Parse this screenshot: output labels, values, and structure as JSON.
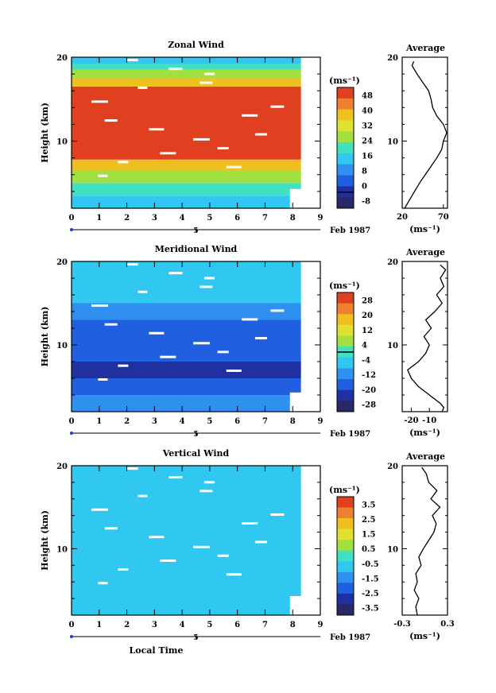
{
  "page": {
    "xlabel_bottom": "Local Time",
    "date_label": "Feb 1987",
    "day_marker": "5"
  },
  "chart_data": [
    {
      "type": "heatmap",
      "title": "Zonal Wind",
      "ylabel": "Height (km)",
      "xlim": [
        0,
        9
      ],
      "ylim": [
        2,
        20
      ],
      "xticks": [
        "0",
        "1",
        "2",
        "3",
        "4",
        "5",
        "6",
        "7",
        "8",
        "9"
      ],
      "yticks": [
        "10",
        "20"
      ],
      "ytick_values": [
        10,
        20
      ],
      "data_extent_x": [
        0,
        8.3
      ],
      "colorbar": {
        "unit": "(ms⁻¹)",
        "labels": [
          "48",
          "40",
          "32",
          "24",
          "16",
          "8",
          "0",
          "-8"
        ],
        "range": [
          -8,
          52
        ],
        "zero_line": 0,
        "colors": [
          "#e04020",
          "#f08030",
          "#f0c020",
          "#e0e030",
          "#a0e040",
          "#40e0c0",
          "#30c8f0",
          "#3090f0",
          "#2060e0",
          "#2030a0",
          "#282868"
        ]
      },
      "bands": [
        {
          "z0": 2,
          "z1": 3.5,
          "value": 14
        },
        {
          "z0": 3.5,
          "z1": 5,
          "value": 22
        },
        {
          "z0": 5,
          "z1": 6.5,
          "value": 30
        },
        {
          "z0": 6.5,
          "z1": 7.8,
          "value": 40
        },
        {
          "z0": 7.8,
          "z1": 16.5,
          "value": 52
        },
        {
          "z0": 16.5,
          "z1": 17.5,
          "value": 40
        },
        {
          "z0": 17.5,
          "z1": 18.5,
          "value": 30
        },
        {
          "z0": 18.5,
          "z1": 19.2,
          "value": 24
        },
        {
          "z0": 19.2,
          "z1": 20,
          "value": 18
        }
      ],
      "profile": {
        "title": "Average",
        "xlabel": "(ms⁻¹)",
        "xlim": [
          20,
          75
        ],
        "xticks": [
          "20",
          "70"
        ],
        "xtick_values": [
          20,
          70
        ],
        "ylim": [
          2,
          20
        ],
        "yticks": [
          "10",
          "20"
        ],
        "z": [
          2,
          3,
          4,
          5,
          6,
          7,
          8,
          9,
          10,
          11,
          12,
          13,
          14,
          15,
          16,
          17,
          18,
          19,
          19.5
        ],
        "values": [
          23,
          29,
          35,
          41,
          48,
          55,
          62,
          68,
          70,
          74,
          70,
          62,
          57,
          55,
          52,
          45,
          38,
          32,
          34
        ]
      }
    },
    {
      "type": "heatmap",
      "title": "Meridional Wind",
      "ylabel": "Height (km)",
      "xlim": [
        0,
        9
      ],
      "ylim": [
        2,
        20
      ],
      "xticks": [
        "0",
        "1",
        "2",
        "3",
        "4",
        "5",
        "6",
        "7",
        "8",
        "9"
      ],
      "yticks": [
        "10",
        "20"
      ],
      "ytick_values": [
        10,
        20
      ],
      "data_extent_x": [
        0,
        8.3
      ],
      "colorbar": {
        "unit": "(ms⁻¹)",
        "labels": [
          "28",
          "20",
          "12",
          "4",
          "-4",
          "-12",
          "-20",
          "-28"
        ],
        "range": [
          -32,
          32
        ],
        "zero_line": 0,
        "colors": [
          "#e04020",
          "#f08030",
          "#f0c020",
          "#e0e030",
          "#a0e040",
          "#40e0c0",
          "#30c8f0",
          "#3090f0",
          "#2060e0",
          "#2030a0",
          "#282868"
        ]
      },
      "bands": [
        {
          "z0": 2,
          "z1": 4,
          "value": -14
        },
        {
          "z0": 4,
          "z1": 6,
          "value": -20
        },
        {
          "z0": 6,
          "z1": 8,
          "value": -26
        },
        {
          "z0": 8,
          "z1": 10,
          "value": -20
        },
        {
          "z0": 10,
          "z1": 13,
          "value": -16
        },
        {
          "z0": 13,
          "z1": 15,
          "value": -11
        },
        {
          "z0": 15,
          "z1": 17,
          "value": -8
        },
        {
          "z0": 17,
          "z1": 20,
          "value": -5
        }
      ],
      "profile": {
        "title": "Average",
        "xlabel": "(ms⁻¹)",
        "xlim": [
          -25,
          0
        ],
        "xticks": [
          "-20",
          "-10"
        ],
        "xtick_values": [
          -20,
          -10
        ],
        "ylim": [
          2,
          20
        ],
        "yticks": [
          "10",
          "20"
        ],
        "z": [
          2,
          2.5,
          3,
          4,
          5,
          6,
          7,
          8,
          9,
          10,
          11,
          12,
          13,
          14,
          15,
          16,
          17,
          18,
          19,
          19.6
        ],
        "values": [
          -3,
          -2,
          -4,
          -10,
          -16,
          -20,
          -22,
          -16,
          -12,
          -10,
          -13,
          -9,
          -12,
          -7,
          -3,
          -6,
          -2,
          -4,
          -1,
          -4
        ]
      }
    },
    {
      "type": "heatmap",
      "title": "Vertical Wind",
      "ylabel": "Height (km)",
      "xlim": [
        0,
        9
      ],
      "ylim": [
        2,
        20
      ],
      "xticks": [
        "0",
        "1",
        "2",
        "3",
        "4",
        "5",
        "6",
        "7",
        "8",
        "9"
      ],
      "yticks": [
        "10",
        "20"
      ],
      "ytick_values": [
        10,
        20
      ],
      "data_extent_x": [
        0,
        8.3
      ],
      "colorbar": {
        "unit": "(ms⁻¹)",
        "labels": [
          "3.5",
          "2.5",
          "1.5",
          "0.5",
          "-0.5",
          "-1.5",
          "-2.5",
          "-3.5"
        ],
        "range": [
          -4,
          4
        ],
        "colors": [
          "#e04020",
          "#f08030",
          "#f0c020",
          "#e0e030",
          "#a0e040",
          "#40e0c0",
          "#30c8f0",
          "#3090f0",
          "#2060e0",
          "#2030a0",
          "#282868"
        ]
      },
      "bands": [
        {
          "z0": 2,
          "z1": 20,
          "value": -0.4
        }
      ],
      "profile": {
        "title": "Average",
        "xlabel": "(ms⁻¹)",
        "xlim": [
          -0.3,
          0.3
        ],
        "xticks": [
          "-0.3",
          "0.3"
        ],
        "xtick_values": [
          -0.3,
          0.3
        ],
        "ylim": [
          2,
          20
        ],
        "yticks": [
          "10",
          "20"
        ],
        "z": [
          2,
          3,
          4,
          5,
          6,
          7,
          8,
          9,
          10,
          11,
          12,
          13,
          14,
          15,
          16,
          17,
          18,
          19,
          19.8
        ],
        "values": [
          -0.1,
          -0.12,
          -0.08,
          -0.14,
          -0.1,
          -0.12,
          -0.05,
          -0.08,
          -0.02,
          0.05,
          0.12,
          0.15,
          0.1,
          0.2,
          0.08,
          0.16,
          0.05,
          0.02,
          -0.04
        ]
      }
    }
  ]
}
